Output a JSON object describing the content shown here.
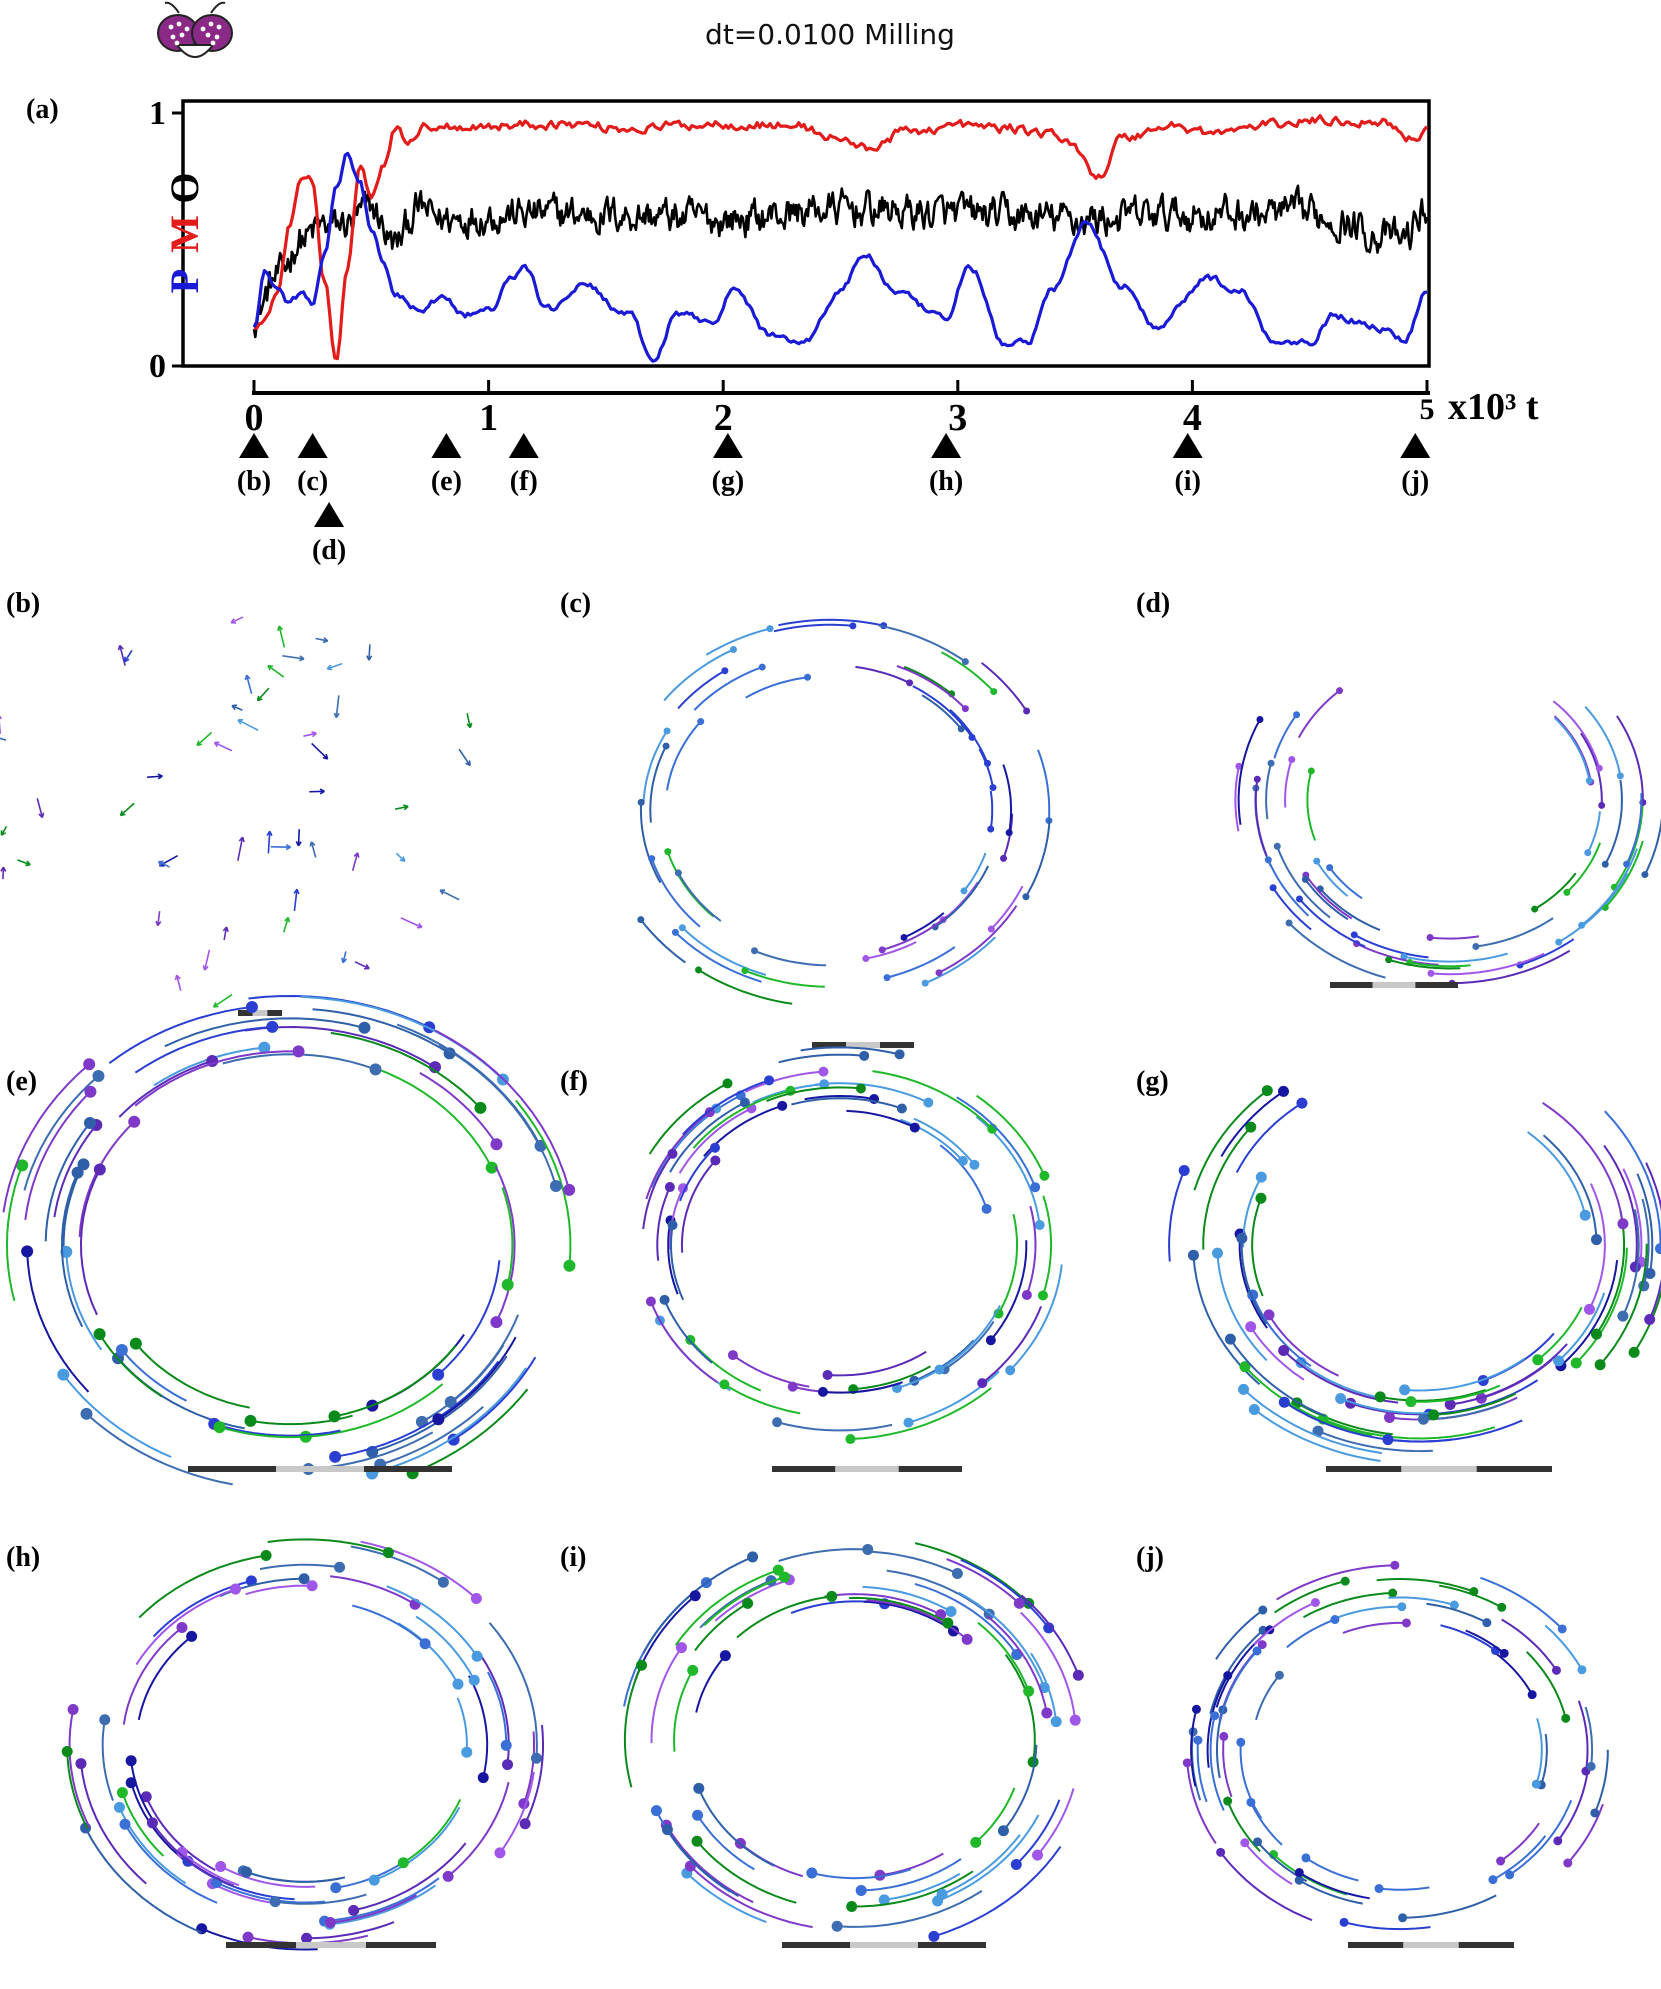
{
  "title": "dt=0.0100 Milling",
  "logo": {
    "name": "fly-head-icon",
    "colors": [
      "#8a2a86",
      "#ffffff",
      "#222222"
    ]
  },
  "panel_labels": [
    "(a)",
    "(b)",
    "(c)",
    "(d)",
    "(e)",
    "(f)",
    "(g)",
    "(h)",
    "(i)",
    "(j)"
  ],
  "chart_data": [
    {
      "type": "line",
      "panel": "(a)",
      "ylabel_letters": [
        {
          "text": "P",
          "color": "#1a1ad6"
        },
        {
          "text": "M",
          "color": "#e21b1b"
        },
        {
          "text": "O",
          "color": "#000000"
        }
      ],
      "xlabel": "x10³ t",
      "xlim": [
        0,
        5
      ],
      "ylim": [
        0,
        1
      ],
      "x_ticks": [
        "0",
        "1",
        "2",
        "3",
        "4",
        "5"
      ],
      "y_ticks": [
        "0",
        "1"
      ],
      "noise": {
        "P": 0.015,
        "M": 0.02,
        "O": 0.07
      },
      "series": [
        {
          "key": "P",
          "color": "#1a1ad6",
          "x": [
            0,
            0.05,
            0.1,
            0.15,
            0.2,
            0.25,
            0.3,
            0.35,
            0.4,
            0.45,
            0.5,
            0.55,
            0.6,
            0.7,
            0.8,
            0.9,
            1.0,
            1.1,
            1.15,
            1.25,
            1.4,
            1.6,
            1.7,
            1.8,
            1.95,
            2.05,
            2.2,
            2.35,
            2.5,
            2.6,
            2.75,
            2.95,
            3.05,
            3.2,
            3.3,
            3.4,
            3.55,
            3.7,
            3.85,
            3.95,
            4.05,
            4.2,
            4.35,
            4.5,
            4.6,
            4.8,
            4.9,
            5.0
          ],
          "y": [
            0.15,
            0.38,
            0.3,
            0.25,
            0.28,
            0.25,
            0.45,
            0.7,
            0.85,
            0.72,
            0.55,
            0.4,
            0.28,
            0.22,
            0.27,
            0.2,
            0.22,
            0.34,
            0.4,
            0.22,
            0.32,
            0.2,
            0.02,
            0.2,
            0.18,
            0.3,
            0.12,
            0.1,
            0.3,
            0.44,
            0.28,
            0.18,
            0.4,
            0.08,
            0.1,
            0.3,
            0.56,
            0.32,
            0.15,
            0.25,
            0.35,
            0.3,
            0.1,
            0.1,
            0.2,
            0.15,
            0.1,
            0.3
          ]
        },
        {
          "key": "M",
          "color": "#e21b1b",
          "x": [
            0,
            0.05,
            0.1,
            0.15,
            0.2,
            0.25,
            0.3,
            0.35,
            0.4,
            0.45,
            0.5,
            0.55,
            0.6,
            0.65,
            0.75,
            1.0,
            1.3,
            1.6,
            2.0,
            2.3,
            2.5,
            2.6,
            2.8,
            3.0,
            3.2,
            3.4,
            3.5,
            3.6,
            3.7,
            3.9,
            4.1,
            4.3,
            4.5,
            4.8,
            4.95,
            5.0
          ],
          "y": [
            0.15,
            0.18,
            0.3,
            0.55,
            0.72,
            0.72,
            0.35,
            0.02,
            0.4,
            0.78,
            0.68,
            0.8,
            0.94,
            0.9,
            0.95,
            0.95,
            0.96,
            0.94,
            0.96,
            0.95,
            0.9,
            0.86,
            0.93,
            0.95,
            0.94,
            0.92,
            0.86,
            0.75,
            0.9,
            0.95,
            0.92,
            0.95,
            0.97,
            0.97,
            0.9,
            0.95
          ]
        },
        {
          "key": "O",
          "color": "#000000",
          "x": [
            0,
            0.1,
            0.2,
            0.3,
            0.4,
            0.5,
            0.6,
            0.7,
            0.8,
            1.0,
            1.5,
            2.0,
            2.5,
            3.0,
            3.5,
            4.0,
            4.5,
            4.9,
            5.0
          ],
          "y": [
            0.2,
            0.35,
            0.5,
            0.55,
            0.56,
            0.62,
            0.48,
            0.62,
            0.58,
            0.6,
            0.6,
            0.58,
            0.62,
            0.6,
            0.58,
            0.6,
            0.6,
            0.5,
            0.62
          ]
        }
      ],
      "markers": [
        {
          "label": "(b)",
          "t": 0.0,
          "row": 1
        },
        {
          "label": "(c)",
          "t": 0.25,
          "row": 1
        },
        {
          "label": "(d)",
          "t": 0.32,
          "row": 2
        },
        {
          "label": "(e)",
          "t": 0.82,
          "row": 1
        },
        {
          "label": "(f)",
          "t": 1.15,
          "row": 1
        },
        {
          "label": "(g)",
          "t": 2.02,
          "row": 1
        },
        {
          "label": "(h)",
          "t": 2.95,
          "row": 1
        },
        {
          "label": "(i)",
          "t": 3.98,
          "row": 1
        },
        {
          "label": "(j)",
          "t": 4.95,
          "row": 1
        }
      ]
    },
    {
      "type": "scatter",
      "description_kind": "agent-snapshots",
      "colors": [
        "#1616a0",
        "#2a3fd1",
        "#3a6fd6",
        "#4a9ae0",
        "#7f39c9",
        "#a056e8",
        "#5b2bb8",
        "#1fb82a",
        "#0a8a1a",
        "#2f5fa8",
        "#3d6db0"
      ],
      "snapshots": [
        {
          "label": "(b)",
          "pattern": "scatter",
          "agents": 50,
          "track": 0.12,
          "dot": 0
        },
        {
          "label": "(c)",
          "pattern": "ring",
          "agents": 45,
          "track": 0.45,
          "dot": 3.5
        },
        {
          "label": "(d)",
          "pattern": "arc",
          "agents": 45,
          "track": 0.5,
          "dot": 3.5
        },
        {
          "label": "(e)",
          "pattern": "ring",
          "agents": 55,
          "track": 0.7,
          "dot": 6
        },
        {
          "label": "(f)",
          "pattern": "ring",
          "agents": 55,
          "track": 0.6,
          "dot": 5
        },
        {
          "label": "(g)",
          "pattern": "arc",
          "agents": 55,
          "track": 0.7,
          "dot": 5.5
        },
        {
          "label": "(h)",
          "pattern": "ring",
          "agents": 55,
          "track": 0.6,
          "dot": 5.5
        },
        {
          "label": "(i)",
          "pattern": "ring",
          "agents": 55,
          "track": 0.6,
          "dot": 5.5
        },
        {
          "label": "(j)",
          "pattern": "ring",
          "agents": 55,
          "track": 0.5,
          "dot": 4.5
        }
      ]
    }
  ]
}
